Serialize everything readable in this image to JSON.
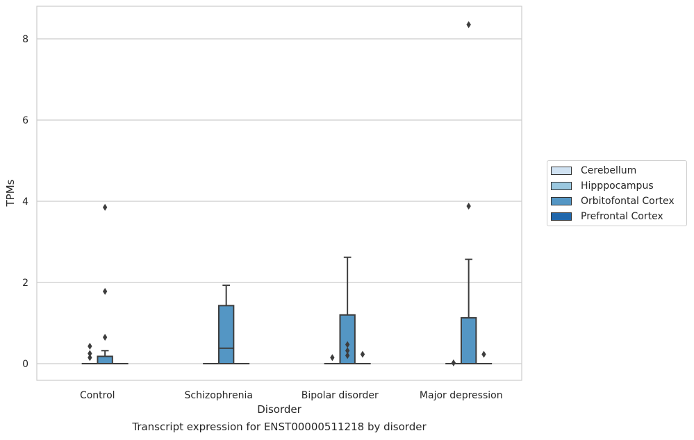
{
  "chart_data": {
    "type": "box",
    "title": "Transcript expression for ENST00000511218 by disorder",
    "xlabel": "Disorder",
    "ylabel": "TPMs",
    "ylim": [
      -0.4,
      8.8
    ],
    "yticks": [
      0,
      2,
      4,
      6,
      8
    ],
    "grid": "horizontal",
    "legend_position": "right",
    "categories": [
      "Control",
      "Schizophrenia",
      "Bipolar disorder",
      "Major depression"
    ],
    "series": [
      {
        "name": "Cerebellum",
        "color": "#d0e2f2",
        "boxes": [
          null,
          null,
          null,
          null
        ]
      },
      {
        "name": "Hipppocampus",
        "color": "#9ac8e0",
        "boxes": [
          {
            "q1": 0,
            "median": 0,
            "q3": 0,
            "whisker_low": 0,
            "whisker_high": 0,
            "outliers": [
              0.15,
              0.25,
              0.43
            ]
          },
          {
            "q1": 0,
            "median": 0,
            "q3": 0,
            "whisker_low": 0,
            "whisker_high": 0,
            "outliers": []
          },
          {
            "q1": 0,
            "median": 0,
            "q3": 0,
            "whisker_low": 0,
            "whisker_high": 0,
            "outliers": [
              0.15
            ]
          },
          {
            "q1": 0,
            "median": 0,
            "q3": 0,
            "whisker_low": 0,
            "whisker_high": 0,
            "outliers": [
              0.02
            ]
          }
        ]
      },
      {
        "name": "Orbitofontal Cortex",
        "color": "#5496c4",
        "boxes": [
          {
            "q1": 0,
            "median": 0,
            "q3": 0.18,
            "whisker_low": 0,
            "whisker_high": 0.32,
            "outliers": [
              0.65,
              1.78,
              3.85
            ]
          },
          {
            "q1": 0,
            "median": 0.38,
            "q3": 1.43,
            "whisker_low": 0,
            "whisker_high": 1.93,
            "outliers": []
          },
          {
            "q1": 0,
            "median": 0,
            "q3": 1.2,
            "whisker_low": 0,
            "whisker_high": 2.62,
            "outliers": [
              0.2,
              0.32,
              0.47
            ]
          },
          {
            "q1": 0,
            "median": 0,
            "q3": 1.13,
            "whisker_low": 0,
            "whisker_high": 2.57,
            "outliers": [
              3.88,
              8.35
            ]
          }
        ]
      },
      {
        "name": "Prefrontal Cortex",
        "color": "#2067ac",
        "boxes": [
          {
            "q1": 0,
            "median": 0,
            "q3": 0,
            "whisker_low": 0,
            "whisker_high": 0,
            "outliers": []
          },
          {
            "q1": 0,
            "median": 0,
            "q3": 0,
            "whisker_low": 0,
            "whisker_high": 0,
            "outliers": []
          },
          {
            "q1": 0,
            "median": 0,
            "q3": 0,
            "whisker_low": 0,
            "whisker_high": 0,
            "outliers": [
              0.23
            ]
          },
          {
            "q1": 0,
            "median": 0,
            "q3": 0,
            "whisker_low": 0,
            "whisker_high": 0,
            "outliers": [
              0.23
            ]
          }
        ]
      }
    ]
  }
}
